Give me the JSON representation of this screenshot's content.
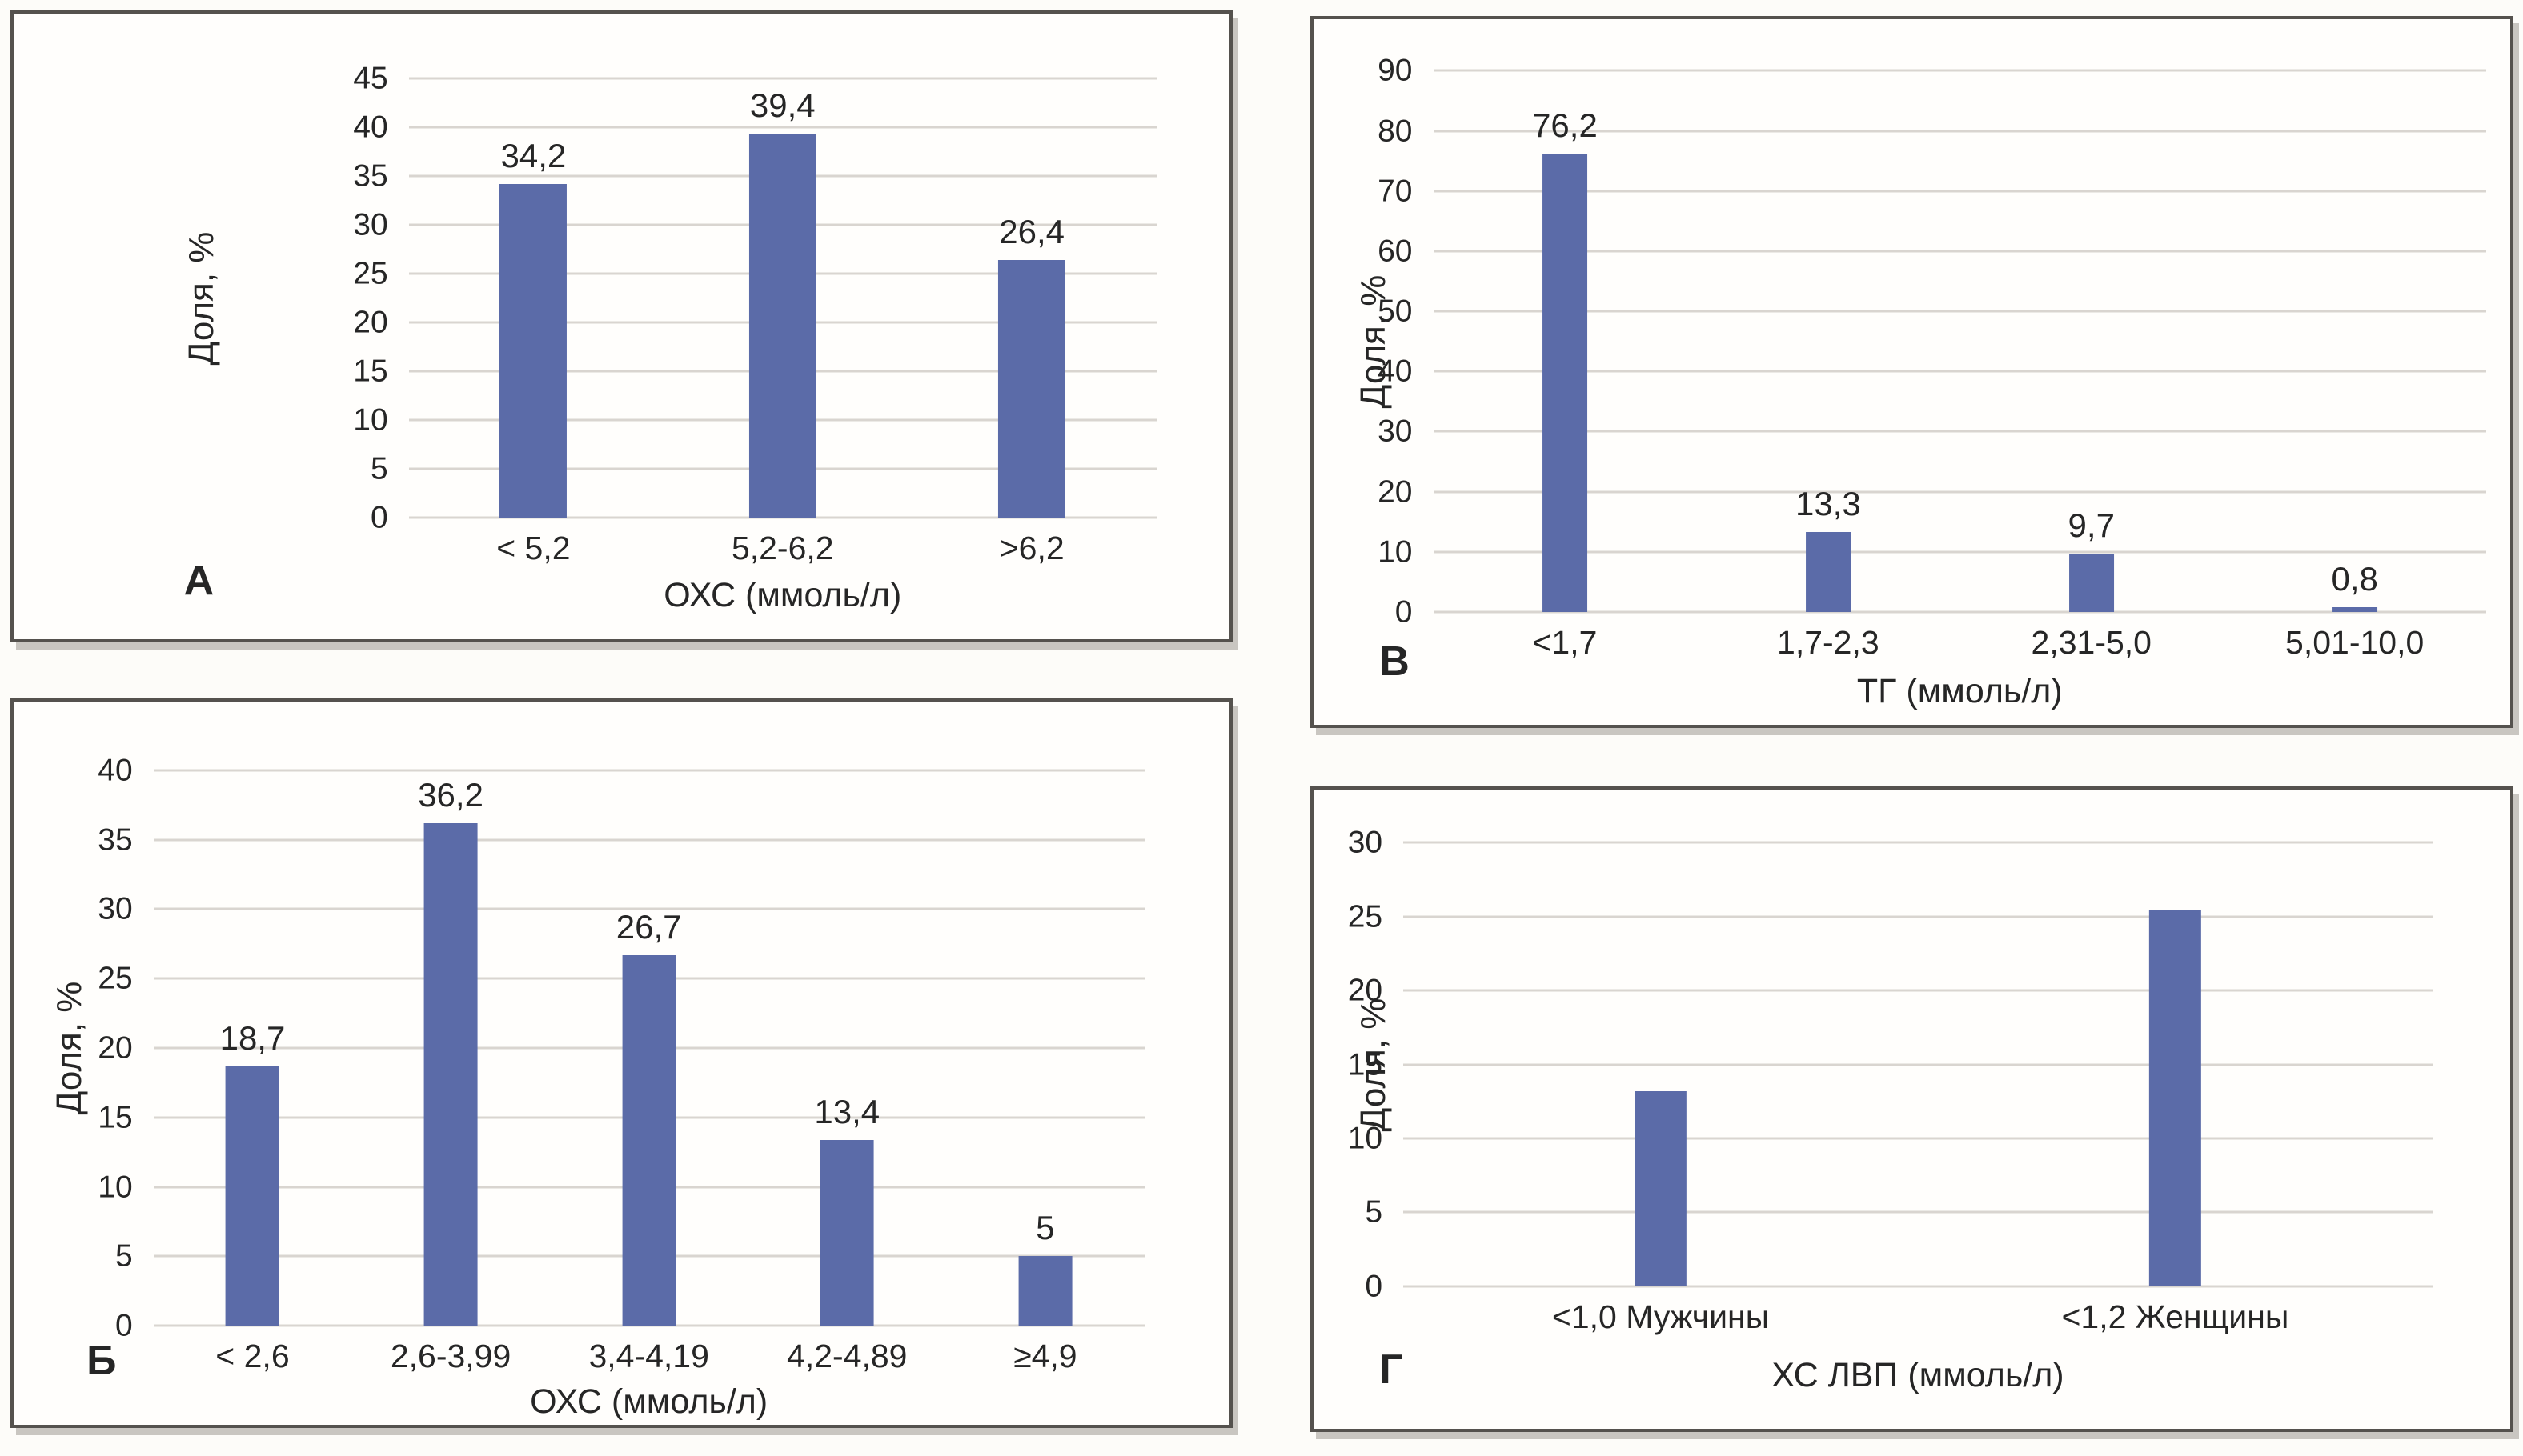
{
  "figure": {
    "background_color": "#fdfcf9",
    "panel_background_color": "#fffefc",
    "panel_border_color": "#55524e",
    "bar_color": "#5b6ba8",
    "gridline_color": "#d9d5d0",
    "text_color": "#262626"
  },
  "chart_data": [
    {
      "type": "bar",
      "panel_label": "А",
      "ylabel": "Доля, %",
      "xlabel": "ОХС (ммоль/л)",
      "ylim": [
        0,
        45
      ],
      "ytick_step": 5,
      "grid": true,
      "legend": "none",
      "categories": [
        "< 5,2",
        "5,2-6,2",
        ">6,2"
      ],
      "values": [
        34.2,
        39.4,
        26.4
      ],
      "value_labels": [
        "34,2",
        "39,4",
        "26,4"
      ],
      "data_labels_visible": true
    },
    {
      "type": "bar",
      "panel_label": "Б",
      "ylabel": "Доля, %",
      "xlabel": "ОХС (ммоль/л)",
      "ylim": [
        0,
        40
      ],
      "ytick_step": 5,
      "grid": true,
      "legend": "none",
      "categories": [
        "< 2,6",
        "2,6-3,99",
        "3,4-4,19",
        "4,2-4,89",
        "≥4,9"
      ],
      "values": [
        18.7,
        36.2,
        26.7,
        13.4,
        5
      ],
      "value_labels": [
        "18,7",
        "36,2",
        "26,7",
        "13,4",
        "5"
      ],
      "data_labels_visible": true
    },
    {
      "type": "bar",
      "panel_label": "В",
      "ylabel": "Доля, %",
      "xlabel": "ТГ (ммоль/л)",
      "ylim": [
        0,
        90
      ],
      "ytick_step": 10,
      "grid": true,
      "legend": "none",
      "categories": [
        "<1,7",
        "1,7-2,3",
        "2,31-5,0",
        "5,01-10,0"
      ],
      "values": [
        76.2,
        13.3,
        9.7,
        0.8
      ],
      "value_labels": [
        "76,2",
        "13,3",
        "9,7",
        "0,8"
      ],
      "data_labels_visible": true
    },
    {
      "type": "bar",
      "panel_label": "Г",
      "ylabel": "Доля, %",
      "xlabel": "ХС ЛВП (ммоль/л)",
      "ylim": [
        0,
        30
      ],
      "ytick_step": 5,
      "grid": true,
      "legend": "none",
      "categories": [
        "<1,0 Мужчины",
        "<1,2 Женщины"
      ],
      "values": [
        13.2,
        25.5
      ],
      "value_labels": [],
      "data_labels_visible": false
    }
  ]
}
